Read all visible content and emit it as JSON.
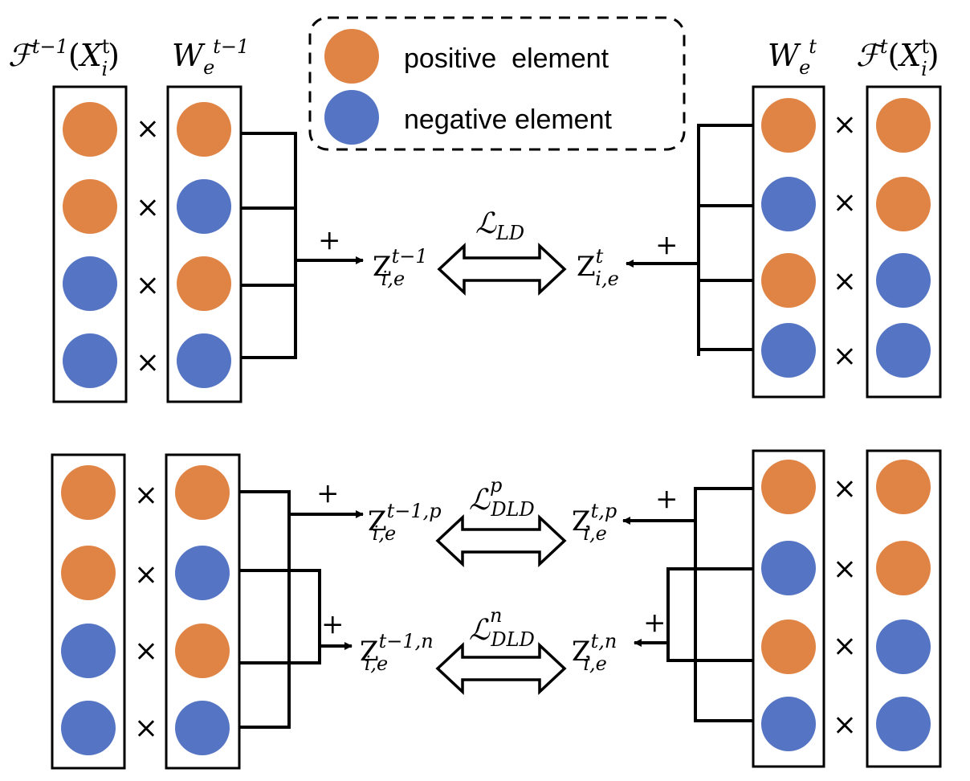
{
  "colors": {
    "positive": "#E08446",
    "negative": "#5575C4",
    "line": "#000000"
  },
  "legend": {
    "positive_label": "positive  element",
    "negative_label": "negative element"
  },
  "labels": {
    "feature_prev": {
      "script": "ℱ",
      "sup": "t−1",
      "open": "(",
      "var": "X",
      "var_sup": "t",
      "var_sub": "i",
      "close": ")"
    },
    "weight_prev": {
      "base": "W",
      "sub": "e",
      "sup": "t−1"
    },
    "weight_cur": {
      "base": "W",
      "sub": "e",
      "sup": "t"
    },
    "feature_cur": {
      "script": "ℱ",
      "sup": "t",
      "open": "(",
      "var": "X",
      "var_sup": "t",
      "var_sub": "i",
      "close": ")"
    },
    "plus": "+",
    "times": "×"
  },
  "top": {
    "z_prev": {
      "base": "Z",
      "sup": "t−1",
      "sub": "i,e"
    },
    "z_cur": {
      "base": "Z",
      "sup": "t",
      "sub": "i,e"
    },
    "loss": {
      "base": "ℒ",
      "sub": "LD"
    },
    "feature_prev_elements": [
      "positive",
      "positive",
      "negative",
      "negative"
    ],
    "weight_prev_elements": [
      "positive",
      "negative",
      "positive",
      "negative"
    ],
    "weight_cur_elements": [
      "positive",
      "negative",
      "positive",
      "negative"
    ],
    "feature_cur_elements": [
      "positive",
      "positive",
      "negative",
      "negative"
    ]
  },
  "bottom": {
    "z_prev_p": {
      "base": "Z",
      "sup": "t−1,p",
      "sub": "i,e"
    },
    "z_prev_n": {
      "base": "Z",
      "sup": "t−1,n",
      "sub": "i,e"
    },
    "z_cur_p": {
      "base": "Z",
      "sup": "t,p",
      "sub": "i,e"
    },
    "z_cur_n": {
      "base": "Z",
      "sup": "t,n",
      "sub": "i,e"
    },
    "loss_p": {
      "base": "ℒ",
      "sup": "p",
      "sub": "DLD"
    },
    "loss_n": {
      "base": "ℒ",
      "sup": "n",
      "sub": "DLD"
    },
    "feature_prev_elements": [
      "positive",
      "positive",
      "negative",
      "negative"
    ],
    "weight_prev_elements": [
      "positive",
      "negative",
      "positive",
      "negative"
    ],
    "weight_cur_elements": [
      "positive",
      "negative",
      "positive",
      "negative"
    ],
    "feature_cur_elements": [
      "positive",
      "positive",
      "negative",
      "negative"
    ]
  }
}
